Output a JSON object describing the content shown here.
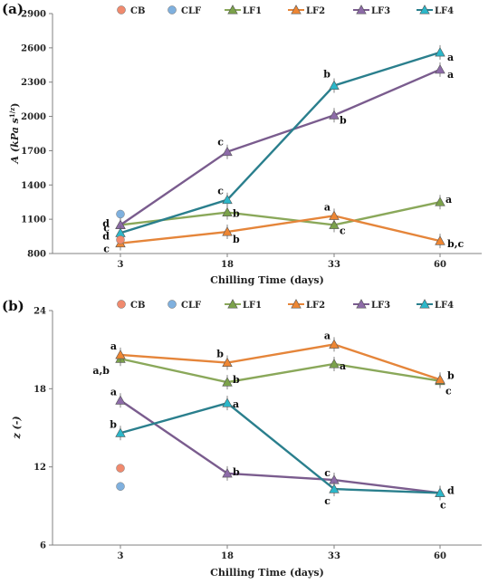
{
  "colors": {
    "CB": "#f08a6e",
    "CLF": "#7fb0de",
    "LF1": "#7ba24a",
    "LF1_line": "#8aa85a",
    "LF2": "#ee8633",
    "LF2_line": "#e5853a",
    "LF3": "#8d6ba8",
    "LF3_line": "#7a5c8e",
    "LF4": "#2bb7c9",
    "LF4_line": "#2a7f8d",
    "axis": "#808080"
  },
  "chart_data": [
    {
      "type": "line",
      "panel_label": "(a)",
      "xlabel": "Chilling Time (days)",
      "ylabel": "A (kPa s",
      "ylabel_sup": "1/z",
      "ylabel_end": ")",
      "categories": [
        "3",
        "18",
        "33",
        "60"
      ],
      "ylim": [
        800,
        2900
      ],
      "yticks": [
        800,
        1100,
        1400,
        1700,
        2000,
        2300,
        2600,
        2900
      ],
      "legend": [
        "CB",
        "CLF",
        "LF1",
        "LF2",
        "LF3",
        "LF4"
      ],
      "legend_placement": "top",
      "points": [
        {
          "name": "CB",
          "x": "3",
          "y": 920
        },
        {
          "name": "CLF",
          "x": "3",
          "y": 1145
        }
      ],
      "series": [
        {
          "name": "LF1",
          "values": [
            1050,
            1160,
            1050,
            1250
          ],
          "labels": [
            "c",
            "b",
            "c",
            "a"
          ]
        },
        {
          "name": "LF2",
          "values": [
            890,
            990,
            1130,
            910
          ],
          "labels": [
            "c",
            "b",
            "a",
            "b,c"
          ]
        },
        {
          "name": "LF3",
          "values": [
            1050,
            1690,
            2010,
            2410
          ],
          "labels": [
            "d",
            "c",
            "b",
            "a"
          ]
        },
        {
          "name": "LF4",
          "values": [
            980,
            1270,
            2270,
            2560
          ],
          "labels": [
            "d",
            "c",
            "b",
            "a"
          ]
        }
      ]
    },
    {
      "type": "line",
      "panel_label": "(b)",
      "xlabel": "Chilling Time (days)",
      "ylabel": "z (-)",
      "categories": [
        "3",
        "18",
        "33",
        "60"
      ],
      "ylim": [
        6,
        24
      ],
      "yticks": [
        6,
        12,
        18,
        24
      ],
      "legend": [
        "CB",
        "CLF",
        "LF1",
        "LF2",
        "LF3",
        "LF4"
      ],
      "legend_placement": "top",
      "points": [
        {
          "name": "CB",
          "x": "3",
          "y": 11.9
        },
        {
          "name": "CLF",
          "x": "3",
          "y": 10.5
        }
      ],
      "series": [
        {
          "name": "LF1",
          "values": [
            20.3,
            18.5,
            19.9,
            18.6
          ],
          "labels": [
            "a,b",
            "b",
            "a",
            "c"
          ]
        },
        {
          "name": "LF2",
          "values": [
            20.6,
            20.0,
            21.4,
            18.7
          ],
          "labels": [
            "a",
            "b",
            "a",
            "b"
          ]
        },
        {
          "name": "LF3",
          "values": [
            17.1,
            11.5,
            11.0,
            10.0
          ],
          "labels": [
            "a",
            "b",
            "c",
            "d"
          ]
        },
        {
          "name": "LF4",
          "values": [
            14.6,
            16.9,
            10.3,
            10.0
          ],
          "labels": [
            "b",
            "a",
            "c",
            "c"
          ]
        }
      ]
    }
  ]
}
